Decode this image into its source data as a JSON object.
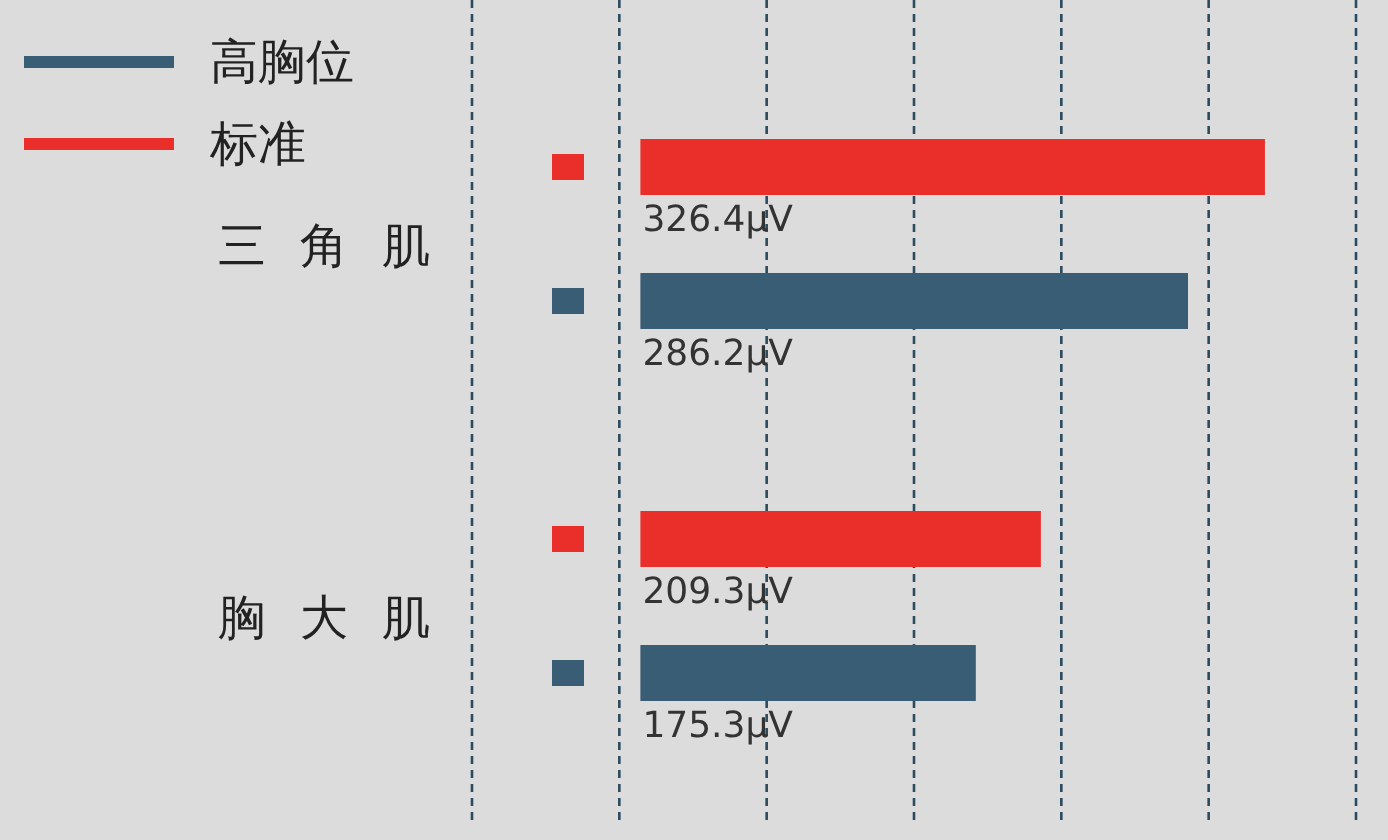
{
  "chart_data": {
    "type": "bar",
    "orientation": "horizontal",
    "categories": [
      "三角肌",
      "胸大肌"
    ],
    "series": [
      {
        "name": "高胸位",
        "color": "#395d74",
        "values": [
          286.2,
          175.3
        ],
        "value_labels": [
          "286.2μV",
          "175.3μV"
        ]
      },
      {
        "name": "标准",
        "color": "#ea2e2a",
        "values": [
          326.4,
          209.3
        ],
        "value_labels": [
          "326.4μV",
          "209.3μV"
        ]
      }
    ],
    "xlim": [
      -88,
      374
    ],
    "xticks": [
      {
        "value": -88,
        "label": null
      },
      {
        "value": -11,
        "label": null
      },
      {
        "value": 66,
        "label": null
      },
      {
        "value": 143,
        "label": null
      },
      {
        "value": 220,
        "label": null
      },
      {
        "value": 297,
        "label": null
      },
      {
        "value": 374,
        "label": null
      }
    ],
    "grid": "x",
    "legend": "top left",
    "tick_labels": "y"
  }
}
